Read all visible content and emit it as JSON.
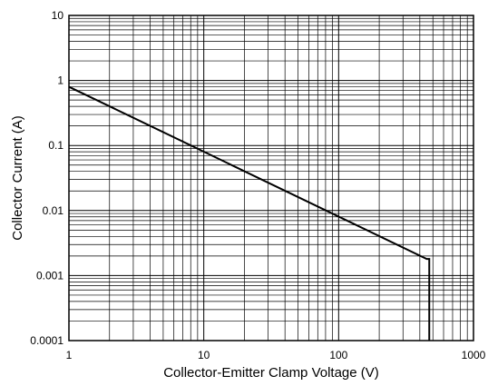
{
  "chart_data": {
    "type": "line",
    "title": "",
    "xlabel": "Collector-Emitter Clamp Voltage (V)",
    "ylabel": "Collector Current (A)",
    "xscale": "log",
    "yscale": "log",
    "xlim": [
      1,
      1000
    ],
    "ylim": [
      0.0001,
      10
    ],
    "grid": true,
    "legend": "none",
    "x_tick_labels": [
      "1",
      "10",
      "100",
      "1000"
    ],
    "y_tick_labels": [
      "0.0001",
      "0.001",
      "0.01",
      "0.1",
      "1",
      "10"
    ],
    "x_ticks": [
      1,
      10,
      100,
      1000
    ],
    "y_ticks": [
      0.0001,
      0.001,
      0.01,
      0.1,
      1,
      10
    ],
    "series": [
      {
        "x": [
          1,
          450,
          450,
          470,
          470
        ],
        "y": [
          0.8,
          0.0018,
          0.0018,
          0.0018,
          0.0001
        ]
      }
    ],
    "colors": {
      "line": "#000000",
      "grid": "#000000",
      "background": "#ffffff"
    }
  }
}
